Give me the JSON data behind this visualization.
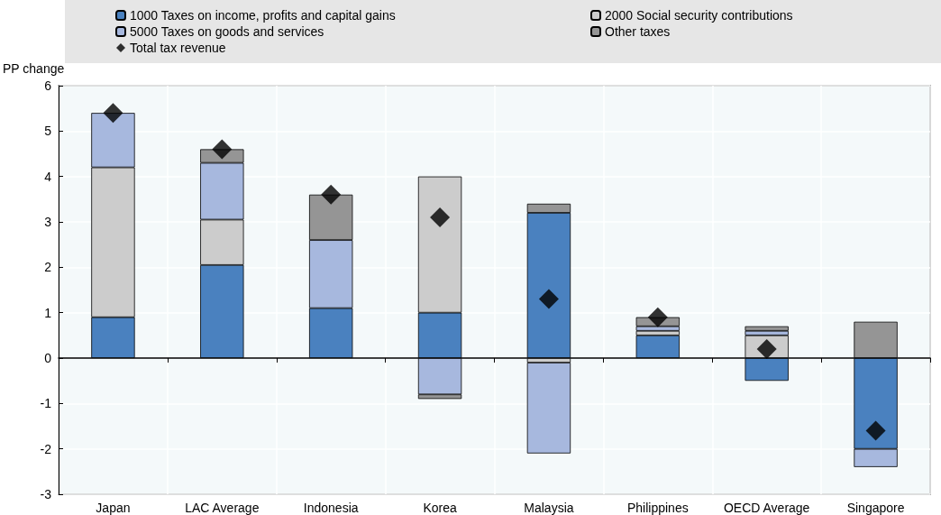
{
  "chart_data": {
    "type": "bar",
    "stacked": true,
    "ylabel": "PP change",
    "categories": [
      "Japan",
      "LAC Average",
      "Indonesia",
      "Korea",
      "Malaysia",
      "Philippines",
      "OECD Average",
      "Singapore"
    ],
    "series": [
      {
        "name": "1000 Taxes on income, profits and capital gains",
        "color": "#4a81bf",
        "values": [
          0.9,
          2.05,
          1.1,
          1.0,
          3.2,
          0.5,
          -0.5,
          -2.0
        ]
      },
      {
        "name": "2000 Social security contributions",
        "color": "#cccccc",
        "values": [
          3.3,
          1.0,
          0,
          3.0,
          -0.1,
          0.1,
          0.5,
          0
        ]
      },
      {
        "name": "5000 Taxes on goods and services",
        "color": "#a7b8de",
        "values": [
          1.2,
          1.25,
          1.5,
          -0.8,
          -2.0,
          0.1,
          0.1,
          -0.4
        ]
      },
      {
        "name": "Other taxes",
        "color": "#959595",
        "values": [
          0,
          0.3,
          1.0,
          -0.1,
          0.2,
          0.2,
          0.1,
          0.8
        ]
      },
      {
        "name": "Total tax revenue",
        "type": "scatter",
        "marker": "diamond",
        "color": "#000000",
        "x": [
          "Japan",
          "LAC Average",
          "Indonesia",
          "Korea",
          "Malaysia",
          "Philippines",
          "OECD Average",
          "Singapore"
        ],
        "values": [
          5.4,
          4.6,
          3.6,
          3.1,
          1.3,
          0.9,
          0.2,
          -1.6
        ]
      }
    ],
    "ylim": [
      -3,
      6
    ],
    "yticks": [
      -3,
      -2,
      -1,
      0,
      1,
      2,
      3,
      4,
      5,
      6
    ],
    "grid": true,
    "legend": "top"
  }
}
